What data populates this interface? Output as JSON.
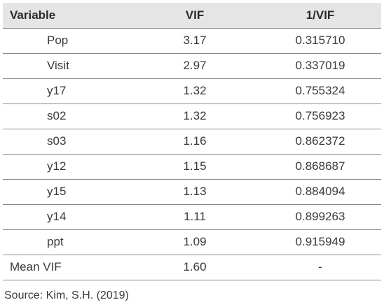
{
  "table": {
    "headers": {
      "variable": "Variable",
      "vif": "VIF",
      "inv_vif": "1/VIF"
    },
    "rows": [
      {
        "variable": "Pop",
        "vif": "3.17",
        "inv_vif": "0.315710"
      },
      {
        "variable": "Visit",
        "vif": "2.97",
        "inv_vif": "0.337019"
      },
      {
        "variable": "y17",
        "vif": "1.32",
        "inv_vif": "0.755324"
      },
      {
        "variable": "s02",
        "vif": "1.32",
        "inv_vif": "0.756923"
      },
      {
        "variable": "s03",
        "vif": "1.16",
        "inv_vif": "0.862372"
      },
      {
        "variable": "y12",
        "vif": "1.15",
        "inv_vif": "0.868687"
      },
      {
        "variable": "y15",
        "vif": "1.13",
        "inv_vif": "0.884094"
      },
      {
        "variable": "y14",
        "vif": "1.11",
        "inv_vif": "0.899263"
      },
      {
        "variable": "ppt",
        "vif": "1.09",
        "inv_vif": "0.915949"
      }
    ],
    "mean": {
      "variable": "Mean VIF",
      "vif": "1.60",
      "inv_vif": "-"
    }
  },
  "source": "Source: Kim, S.H. (2019)"
}
